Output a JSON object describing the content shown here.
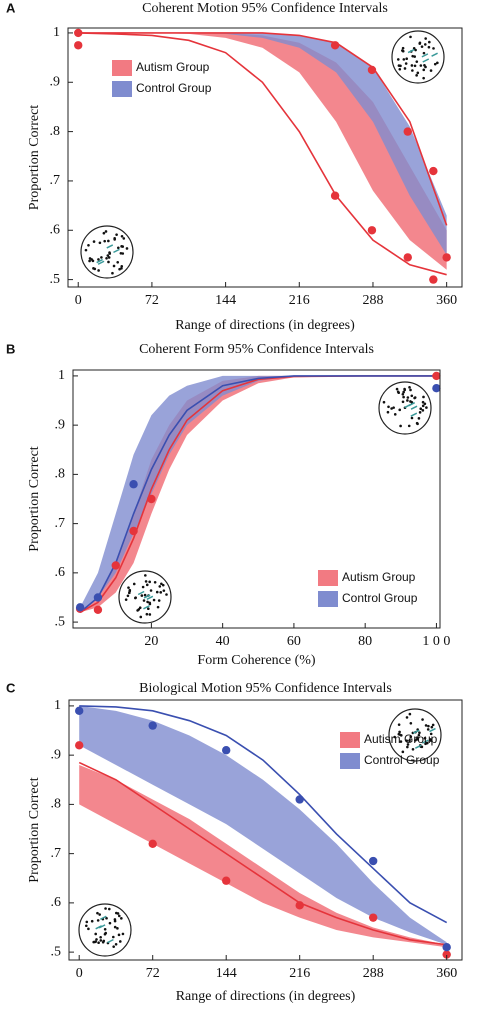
{
  "chart_data": [
    {
      "type": "band",
      "label": "A",
      "title": "Coherent Motion 95% Confidence Intervals",
      "xlabel": "Range of  directions (in degrees)",
      "ylabel": "Proportion Correct",
      "xlim": [
        -10,
        375
      ],
      "ylim": [
        0.485,
        1.01
      ],
      "xticks": [
        0,
        72,
        144,
        216,
        288,
        360
      ],
      "yticks": [
        {
          "value": 0.5,
          "label": ".5"
        },
        {
          "value": 0.6,
          "label": ".6"
        },
        {
          "value": 0.7,
          "label": ".7"
        },
        {
          "value": 0.8,
          "label": ".8"
        },
        {
          "value": 0.9,
          "label": ".9"
        },
        1
      ],
      "legend_position": "upper left",
      "x": [
        0,
        36,
        72,
        108,
        144,
        180,
        216,
        252,
        288,
        324,
        360
      ],
      "bands": [
        {
          "name": "Autism Group",
          "color": "#f27a82",
          "lower": [
            1,
            1,
            1,
            0.998,
            0.99,
            0.97,
            0.92,
            0.82,
            0.68,
            0.58,
            0.52
          ],
          "upper": [
            1,
            1,
            1,
            1,
            1,
            0.995,
            0.98,
            0.94,
            0.86,
            0.73,
            0.6
          ]
        },
        {
          "name": "Control Group",
          "color": "#7f8ccf",
          "lower": [
            1,
            1,
            1,
            1,
            0.998,
            0.99,
            0.97,
            0.92,
            0.82,
            0.67,
            0.55
          ],
          "upper": [
            1,
            1,
            1,
            1,
            1,
            1,
            0.995,
            0.98,
            0.93,
            0.81,
            0.63
          ]
        }
      ],
      "curves": [
        {
          "color": "#e5343b",
          "values": [
            1,
            1,
            1,
            1,
            1,
            1,
            0.995,
            0.98,
            0.93,
            0.82,
            0.61
          ]
        },
        {
          "color": "#e5343b",
          "values": [
            1,
            0.998,
            0.995,
            0.985,
            0.96,
            0.9,
            0.8,
            0.67,
            0.58,
            0.53,
            0.51
          ]
        }
      ],
      "points": [
        {
          "color": "#e5343b",
          "x": [
            0,
            0,
            251,
            287,
            322,
            347,
            251,
            287,
            322,
            360,
            347
          ],
          "values": [
            1,
            0.975,
            0.975,
            0.925,
            0.8,
            0.72,
            0.67,
            0.6,
            0.545,
            0.545,
            0.5
          ]
        }
      ]
    },
    {
      "type": "band",
      "label": "B",
      "title": "Coherent Form 95% Confidence Intervals",
      "xlabel": "Form Coherence (%)",
      "ylabel": "Proportion Correct",
      "xlim": [
        -2,
        101
      ],
      "ylim": [
        0.488,
        1.012
      ],
      "xticks": [
        20,
        40,
        60,
        80,
        {
          "value": 100,
          "label": "1 0 0"
        }
      ],
      "yticks": [
        {
          "value": 0.5,
          "label": ".5"
        },
        {
          "value": 0.6,
          "label": ".6"
        },
        {
          "value": 0.7,
          "label": ".7"
        },
        {
          "value": 0.8,
          "label": ".8"
        },
        {
          "value": 0.9,
          "label": ".9"
        },
        1
      ],
      "legend_position": "lower right",
      "x": [
        0,
        5,
        10,
        15,
        20,
        25,
        30,
        40,
        50,
        60,
        80,
        100
      ],
      "bands": [
        {
          "name": "Autism Group",
          "color": "#f27a82",
          "lower": [
            0.52,
            0.53,
            0.56,
            0.62,
            0.72,
            0.81,
            0.88,
            0.95,
            0.985,
            0.997,
            1,
            1
          ],
          "upper": [
            0.52,
            0.55,
            0.62,
            0.72,
            0.83,
            0.9,
            0.95,
            0.99,
            1,
            1,
            1,
            1
          ]
        },
        {
          "name": "Control Group",
          "color": "#7f8ccf",
          "lower": [
            0.52,
            0.55,
            0.6,
            0.68,
            0.76,
            0.84,
            0.9,
            0.96,
            0.99,
            1,
            1,
            1
          ],
          "upper": [
            0.53,
            0.6,
            0.72,
            0.84,
            0.92,
            0.96,
            0.98,
            1,
            1,
            1,
            1,
            1
          ]
        }
      ],
      "curves": [
        {
          "color": "#e5343b",
          "values": [
            0.52,
            0.54,
            0.59,
            0.67,
            0.77,
            0.85,
            0.91,
            0.97,
            0.993,
            0.999,
            1,
            1
          ]
        },
        {
          "color": "#3a4fb0",
          "values": [
            0.52,
            0.55,
            0.62,
            0.72,
            0.81,
            0.88,
            0.93,
            0.98,
            0.995,
            1,
            1,
            1
          ]
        }
      ],
      "points": [
        {
          "color": "#e5343b",
          "x": [
            0,
            5,
            10,
            15,
            20,
            100
          ],
          "values": [
            0.527,
            0.525,
            0.615,
            0.685,
            0.75,
            1
          ]
        },
        {
          "color": "#3a4fb0",
          "x": [
            0,
            5,
            15,
            100
          ],
          "values": [
            0.53,
            0.55,
            0.78,
            0.975
          ]
        }
      ]
    },
    {
      "type": "band",
      "label": "C",
      "title": "Biological Motion 95% Confidence Intervals",
      "xlabel": "Range of  directions (in degrees)",
      "ylabel": "Proportion Correct",
      "xlim": [
        -10,
        375
      ],
      "ylim": [
        0.484,
        1.012
      ],
      "xticks": [
        0,
        72,
        144,
        216,
        288,
        360
      ],
      "yticks": [
        {
          "value": 0.5,
          "label": ".5"
        },
        {
          "value": 0.6,
          "label": ".6"
        },
        {
          "value": 0.7,
          "label": ".7"
        },
        {
          "value": 0.8,
          "label": ".8"
        },
        {
          "value": 0.9,
          "label": ".9"
        },
        1
      ],
      "legend_position": "upper right",
      "x": [
        0,
        36,
        72,
        108,
        144,
        180,
        216,
        252,
        288,
        324,
        360
      ],
      "bands": [
        {
          "name": "Autism Group",
          "color": "#f27a82",
          "lower": [
            0.8,
            0.76,
            0.72,
            0.68,
            0.64,
            0.6,
            0.57,
            0.545,
            0.53,
            0.52,
            0.51
          ],
          "upper": [
            0.88,
            0.85,
            0.81,
            0.77,
            0.72,
            0.67,
            0.62,
            0.58,
            0.55,
            0.53,
            0.515
          ]
        },
        {
          "name": "Control Group",
          "color": "#7f8ccf",
          "lower": [
            0.92,
            0.88,
            0.84,
            0.8,
            0.76,
            0.71,
            0.66,
            0.61,
            0.57,
            0.54,
            0.515
          ],
          "upper": [
            1,
            0.99,
            0.97,
            0.94,
            0.9,
            0.85,
            0.79,
            0.72,
            0.64,
            0.57,
            0.52
          ]
        }
      ],
      "curves": [
        {
          "color": "#e5343b",
          "values": [
            0.885,
            0.85,
            0.8,
            0.75,
            0.7,
            0.65,
            0.6,
            0.57,
            0.545,
            0.525,
            0.515
          ]
        },
        {
          "color": "#3a4fb0",
          "values": [
            1,
            0.998,
            0.99,
            0.97,
            0.94,
            0.89,
            0.82,
            0.74,
            0.67,
            0.6,
            0.56
          ]
        }
      ],
      "points": [
        {
          "color": "#e5343b",
          "x": [
            0,
            72,
            144,
            216,
            288,
            360
          ],
          "values": [
            0.92,
            0.72,
            0.645,
            0.595,
            0.57,
            0.495
          ]
        },
        {
          "color": "#3a4fb0",
          "x": [
            0,
            72,
            144,
            216,
            288,
            360
          ],
          "values": [
            0.99,
            0.96,
            0.91,
            0.81,
            0.685,
            0.51
          ]
        }
      ]
    }
  ]
}
